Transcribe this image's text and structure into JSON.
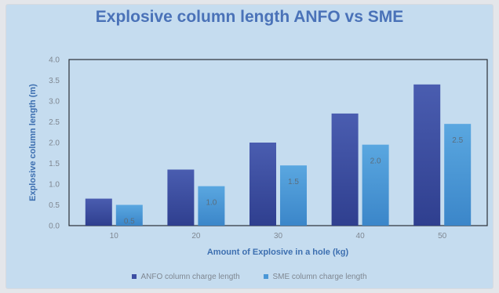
{
  "chart_data": {
    "type": "bar",
    "title": "Explosive column length ANFO vs SME",
    "xlabel": "Amount of Explosive in a hole (kg)",
    "ylabel": "Explosive column length (m)",
    "categories": [
      "10",
      "20",
      "30",
      "40",
      "50"
    ],
    "ylim": [
      0,
      4
    ],
    "yticks": [
      "0.0",
      "0.5",
      "1.0",
      "1.5",
      "2.0",
      "2.5",
      "3.0",
      "3.5",
      "4.0"
    ],
    "series": [
      {
        "name": "ANFO column charge length",
        "values": [
          0.65,
          1.35,
          2.0,
          2.7,
          3.4
        ],
        "color": "#3d4fa3",
        "labels": [
          "",
          "",
          "",
          "",
          ""
        ]
      },
      {
        "name": "SME column charge length",
        "values": [
          0.5,
          0.95,
          1.45,
          1.95,
          2.45
        ],
        "color": "#4a97d6",
        "labels": [
          "0.5",
          "1.0",
          "1.5",
          "2.0",
          "2.5"
        ]
      }
    ],
    "legend_position": "bottom",
    "grid": false
  }
}
